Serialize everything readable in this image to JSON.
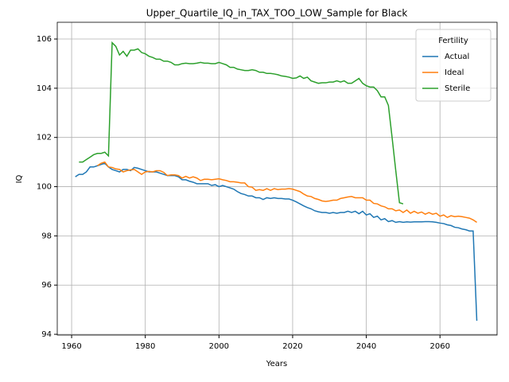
{
  "chart_data": {
    "type": "line",
    "title": "Upper_Quartile_IQ_in_TAX_TOO_LOW_Sample for Black",
    "x_label": "Years",
    "y_label": "IQ",
    "x": [
      1961,
      1962,
      1963,
      1964,
      1965,
      1966,
      1967,
      1968,
      1969,
      1970,
      1971,
      1972,
      1973,
      1974,
      1975,
      1976,
      1977,
      1978,
      1979,
      1980,
      1981,
      1982,
      1983,
      1984,
      1985,
      1986,
      1987,
      1988,
      1989,
      1990,
      1991,
      1992,
      1993,
      1994,
      1995,
      1996,
      1997,
      1998,
      1999,
      2000,
      2001,
      2002,
      2003,
      2004,
      2005,
      2006,
      2007,
      2008,
      2009,
      2010,
      2011,
      2012,
      2013,
      2014,
      2015,
      2016,
      2017,
      2018,
      2019,
      2020,
      2021,
      2022,
      2023,
      2024,
      2025,
      2026,
      2027,
      2028,
      2029,
      2030,
      2031,
      2032,
      2033,
      2034,
      2035,
      2036,
      2037,
      2038,
      2039,
      2040,
      2041,
      2042,
      2043,
      2044,
      2045,
      2046,
      2047,
      2048,
      2049,
      2050,
      2051,
      2052,
      2053,
      2054,
      2055,
      2056,
      2057,
      2058,
      2059,
      2060,
      2061,
      2062,
      2063,
      2064,
      2065,
      2066,
      2067,
      2068,
      2069,
      2070
    ],
    "series": [
      {
        "name": "Actual",
        "color": "#1f77b4",
        "values": [
          100.4,
          100.5,
          100.5,
          100.6,
          100.8,
          100.8,
          100.85,
          100.9,
          100.95,
          100.8,
          100.7,
          100.65,
          100.6,
          100.7,
          100.7,
          100.65,
          100.78,
          100.75,
          100.7,
          100.65,
          100.6,
          100.6,
          100.6,
          100.55,
          100.5,
          100.45,
          100.45,
          100.45,
          100.4,
          100.28,
          100.28,
          100.22,
          100.18,
          100.12,
          100.12,
          100.12,
          100.12,
          100.05,
          100.08,
          100.0,
          100.05,
          100.0,
          99.95,
          99.9,
          99.8,
          99.72,
          99.68,
          99.62,
          99.62,
          99.55,
          99.55,
          99.48,
          99.55,
          99.52,
          99.55,
          99.52,
          99.52,
          99.5,
          99.5,
          99.45,
          99.38,
          99.3,
          99.22,
          99.15,
          99.1,
          99.02,
          98.98,
          98.95,
          98.95,
          98.92,
          98.95,
          98.92,
          98.95,
          98.95,
          99.0,
          98.95,
          99.0,
          98.9,
          99.0,
          98.85,
          98.9,
          98.75,
          98.8,
          98.65,
          98.7,
          98.58,
          98.62,
          98.55,
          98.58,
          98.55,
          98.57,
          98.56,
          98.57,
          98.57,
          98.57,
          98.58,
          98.58,
          98.57,
          98.55,
          98.52,
          98.5,
          98.45,
          98.42,
          98.35,
          98.33,
          98.28,
          98.25,
          98.2,
          98.2,
          94.55
        ]
      },
      {
        "name": "Ideal",
        "color": "#ff7f0e",
        "values": [
          null,
          null,
          null,
          null,
          null,
          null,
          100.85,
          100.95,
          101.0,
          100.8,
          100.78,
          100.72,
          100.7,
          100.6,
          100.65,
          100.68,
          100.7,
          100.6,
          100.5,
          100.6,
          100.62,
          100.6,
          100.65,
          100.65,
          100.58,
          100.45,
          100.48,
          100.48,
          100.45,
          100.35,
          100.42,
          100.35,
          100.4,
          100.35,
          100.25,
          100.3,
          100.3,
          100.28,
          100.3,
          100.32,
          100.28,
          100.25,
          100.2,
          100.2,
          100.18,
          100.15,
          100.15,
          100.0,
          99.98,
          99.85,
          99.88,
          99.85,
          99.92,
          99.85,
          99.92,
          99.88,
          99.9,
          99.9,
          99.92,
          99.9,
          99.85,
          99.8,
          99.7,
          99.62,
          99.6,
          99.52,
          99.48,
          99.42,
          99.4,
          99.42,
          99.45,
          99.45,
          99.52,
          99.55,
          99.58,
          99.6,
          99.55,
          99.55,
          99.55,
          99.45,
          99.45,
          99.32,
          99.3,
          99.22,
          99.18,
          99.1,
          99.1,
          99.02,
          99.05,
          98.95,
          99.05,
          98.92,
          99.0,
          98.92,
          98.97,
          98.88,
          98.95,
          98.88,
          98.92,
          98.8,
          98.85,
          98.75,
          98.82,
          98.78,
          98.8,
          98.78,
          98.75,
          98.72,
          98.65,
          98.55
        ]
      },
      {
        "name": "Sterile",
        "color": "#2ca02c",
        "values": [
          null,
          101.0,
          101.0,
          101.1,
          101.2,
          101.3,
          101.35,
          101.35,
          101.4,
          101.25,
          105.85,
          105.7,
          105.35,
          105.5,
          105.3,
          105.55,
          105.55,
          105.6,
          105.45,
          105.4,
          105.3,
          105.25,
          105.18,
          105.18,
          105.1,
          105.1,
          105.05,
          104.95,
          104.95,
          105.0,
          105.02,
          105.0,
          105.0,
          105.02,
          105.05,
          105.02,
          105.02,
          105.0,
          105.0,
          105.05,
          105.0,
          104.95,
          104.85,
          104.85,
          104.78,
          104.75,
          104.72,
          104.72,
          104.75,
          104.72,
          104.65,
          104.65,
          104.6,
          104.6,
          104.58,
          104.55,
          104.5,
          104.48,
          104.45,
          104.4,
          104.42,
          104.5,
          104.4,
          104.45,
          104.3,
          104.25,
          104.2,
          104.22,
          104.22,
          104.25,
          104.25,
          104.3,
          104.25,
          104.3,
          104.2,
          104.2,
          104.3,
          104.4,
          104.2,
          104.1,
          104.05,
          104.05,
          103.9,
          103.65,
          103.65,
          103.3,
          102.0,
          100.65,
          99.35,
          99.3,
          null,
          null,
          null,
          null,
          null,
          null,
          null,
          null,
          null,
          null,
          null,
          null,
          null,
          null,
          null,
          null,
          null,
          null,
          null,
          null
        ]
      }
    ],
    "xlim": [
      1956.1,
      2075.5
    ],
    "ylim": [
      93.97,
      106.68
    ],
    "xticks": [
      1960,
      1980,
      2000,
      2020,
      2040,
      2060
    ],
    "yticks": [
      94,
      96,
      98,
      100,
      102,
      104,
      106
    ],
    "grid": true,
    "legend_title": "Fertility",
    "legend_position": "upper right"
  }
}
